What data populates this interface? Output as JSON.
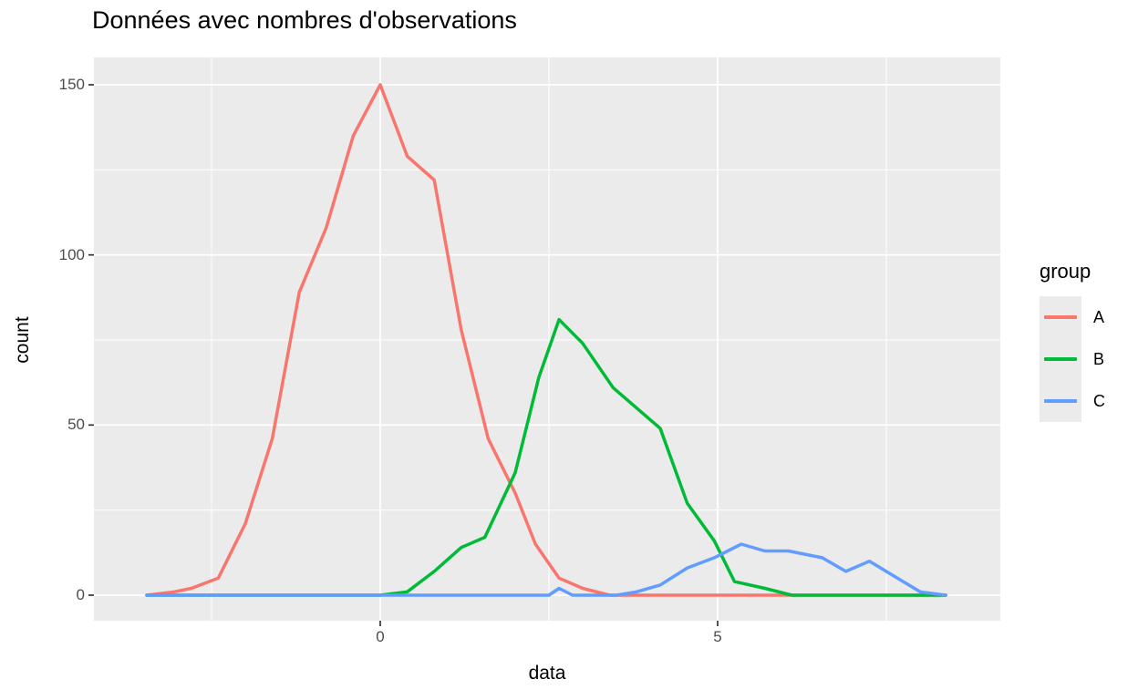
{
  "chart_data": {
    "type": "line",
    "subtype": "frequency-polygon",
    "title": "Données avec nombres d'observations",
    "xlabel": "data",
    "ylabel": "count",
    "legend_title": "group",
    "legend_position": "right",
    "panel_background": "#EBEBEB",
    "gridline_color": "#FFFFFF",
    "tick_label_color": "#4D4D4D",
    "axis_tick_color": "#333333",
    "xlim": [
      -4.24,
      9.19
    ],
    "ylim": [
      -7.5,
      157.5
    ],
    "x_ticks": [
      {
        "label": "0",
        "value": 0
      },
      {
        "label": "5",
        "value": 5
      }
    ],
    "x_minor_ticks": [
      -2.5,
      2.5,
      7.5
    ],
    "y_ticks": [
      {
        "label": "0",
        "value": 0
      },
      {
        "label": "50",
        "value": 50
      },
      {
        "label": "100",
        "value": 100
      },
      {
        "label": "150",
        "value": 150
      }
    ],
    "y_minor_ticks": [
      25,
      75,
      125
    ],
    "grid": true,
    "series": [
      {
        "name": "A",
        "color": "#F8766D",
        "points": [
          [
            -3.46,
            0
          ],
          [
            -3.05,
            1
          ],
          [
            -2.8,
            2
          ],
          [
            -2.4,
            5
          ],
          [
            -2.0,
            21
          ],
          [
            -1.6,
            46
          ],
          [
            -1.2,
            89
          ],
          [
            -0.8,
            108
          ],
          [
            -0.4,
            135
          ],
          [
            0,
            150
          ],
          [
            0.4,
            129
          ],
          [
            0.8,
            122
          ],
          [
            1.2,
            78
          ],
          [
            1.6,
            46
          ],
          [
            2.0,
            30
          ],
          [
            2.3,
            15
          ],
          [
            2.65,
            5
          ],
          [
            3.0,
            2
          ],
          [
            3.4,
            0
          ],
          [
            8.38,
            0
          ]
        ]
      },
      {
        "name": "B",
        "color": "#00BA38",
        "points": [
          [
            -3.46,
            0
          ],
          [
            0,
            0
          ],
          [
            0.4,
            1
          ],
          [
            0.8,
            7
          ],
          [
            1.2,
            14
          ],
          [
            1.55,
            17
          ],
          [
            2.0,
            36
          ],
          [
            2.35,
            64
          ],
          [
            2.65,
            81
          ],
          [
            3.0,
            74
          ],
          [
            3.45,
            61
          ],
          [
            3.8,
            55
          ],
          [
            4.15,
            49
          ],
          [
            4.55,
            27
          ],
          [
            4.95,
            16
          ],
          [
            5.25,
            4
          ],
          [
            5.7,
            2
          ],
          [
            6.1,
            0
          ],
          [
            8.38,
            0
          ]
        ]
      },
      {
        "name": "C",
        "color": "#619CFF",
        "points": [
          [
            -3.46,
            0
          ],
          [
            2.5,
            0
          ],
          [
            2.65,
            2
          ],
          [
            2.85,
            0
          ],
          [
            3.5,
            0
          ],
          [
            3.8,
            1
          ],
          [
            4.15,
            3
          ],
          [
            4.55,
            8
          ],
          [
            4.95,
            11
          ],
          [
            5.35,
            15
          ],
          [
            5.7,
            13
          ],
          [
            6.05,
            13
          ],
          [
            6.55,
            11
          ],
          [
            6.9,
            7
          ],
          [
            7.25,
            10
          ],
          [
            8.0,
            1
          ],
          [
            8.38,
            0
          ]
        ]
      }
    ]
  }
}
